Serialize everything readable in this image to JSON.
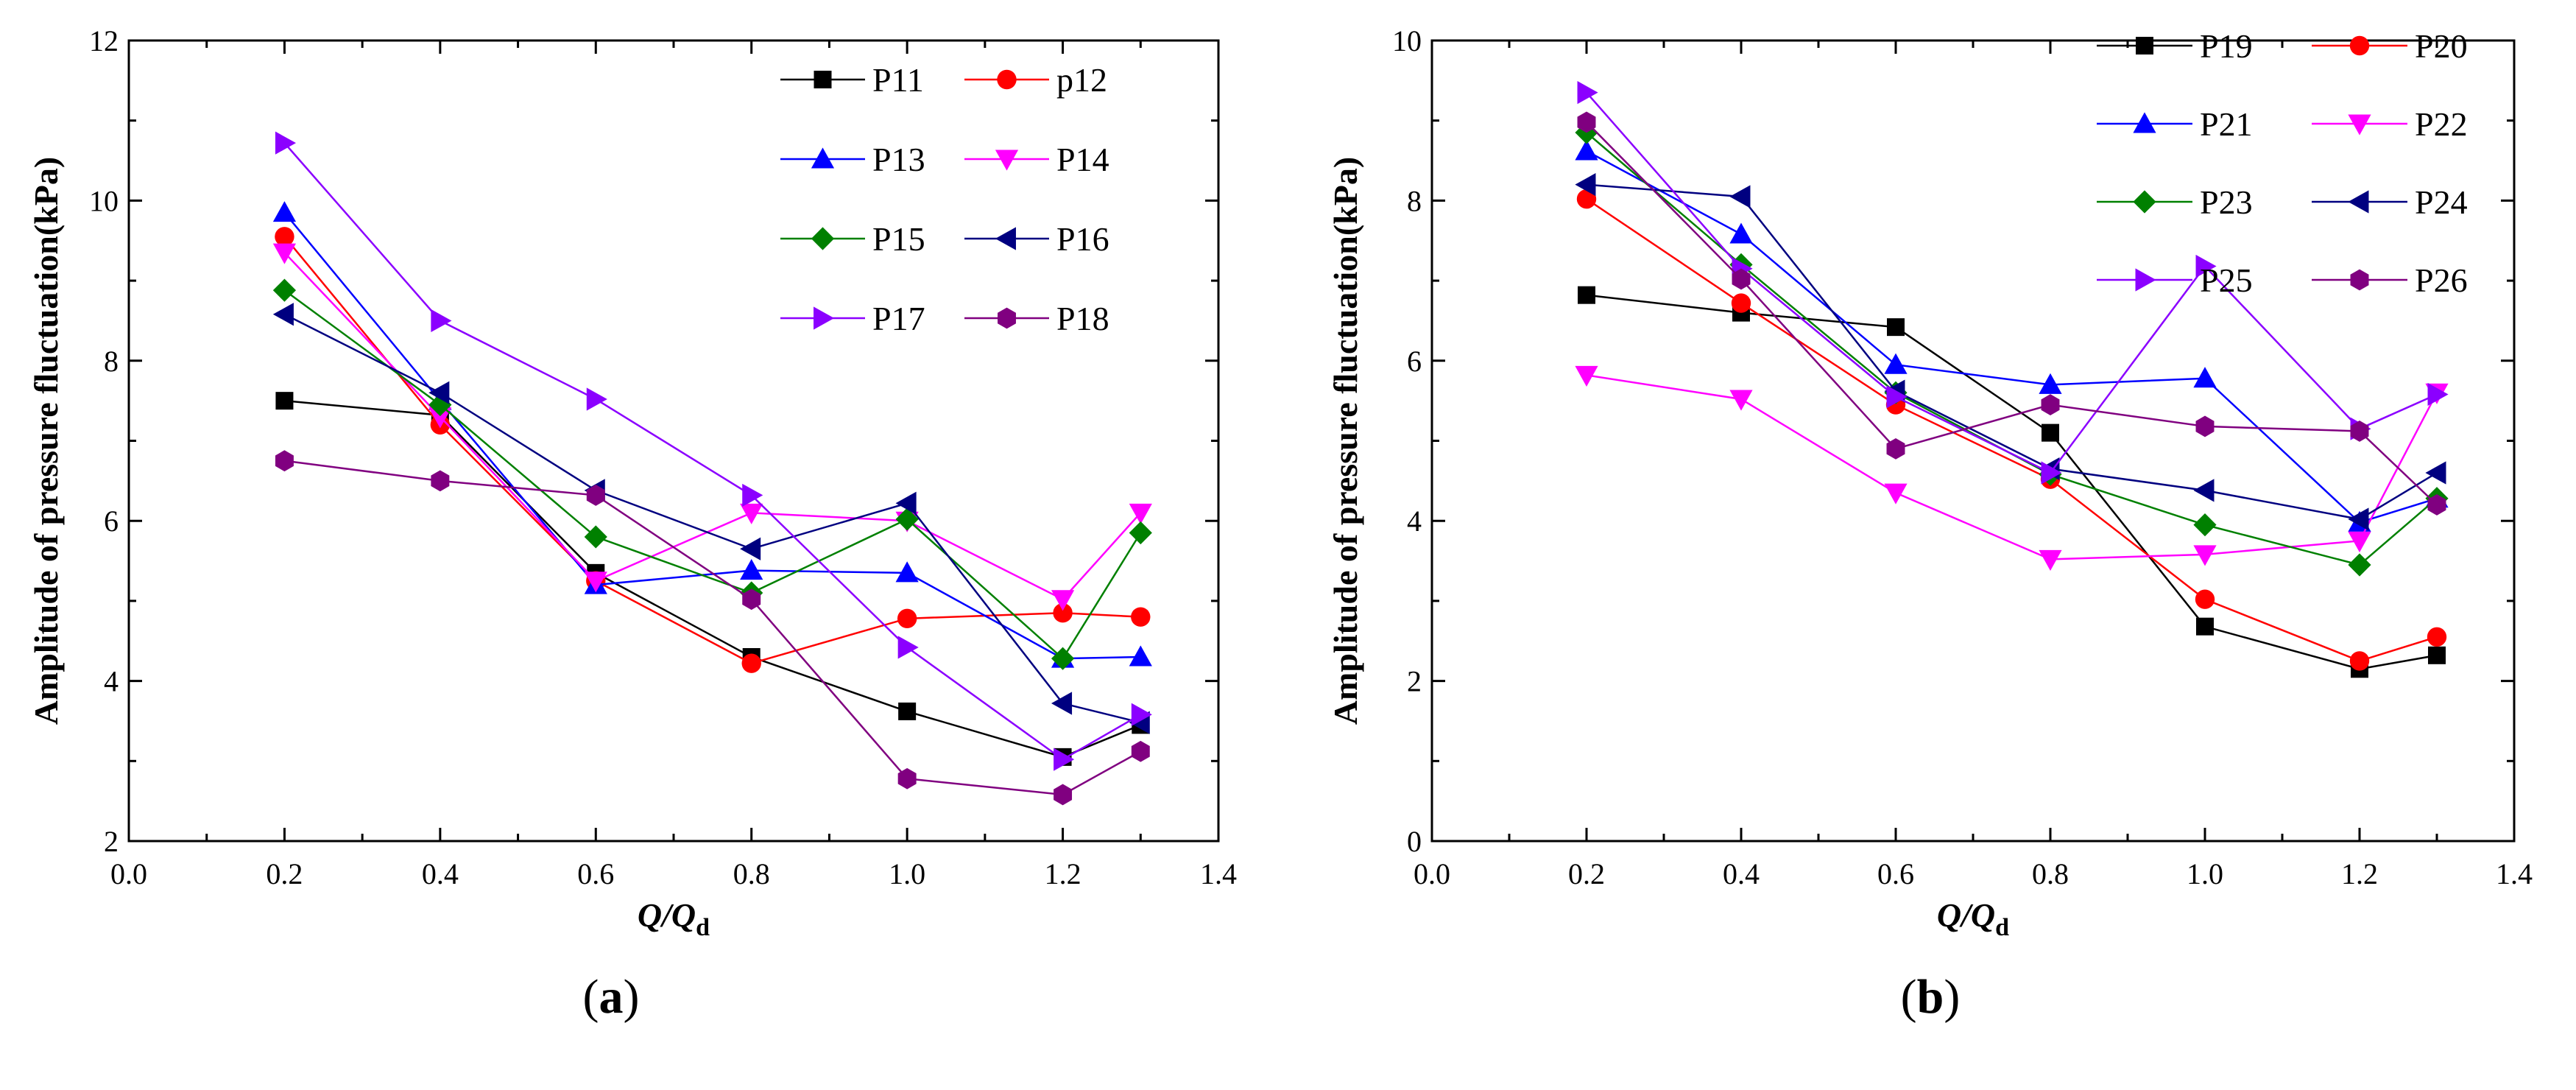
{
  "chart_data": [
    {
      "type": "line",
      "panel_label_prefix": "(",
      "panel_label": "a",
      "panel_label_suffix": ")",
      "ylabel": "Amplitude of pressure fluctuation(kPa)",
      "xlabel_main": "Q",
      "xlabel_slash": "/",
      "xlabel_sub_main": "Q",
      "xlabel_sub": "d",
      "xlim": [
        0.0,
        1.4
      ],
      "ylim": [
        2,
        12
      ],
      "xticks": [
        "0.0",
        "0.2",
        "0.4",
        "0.6",
        "0.8",
        "1.0",
        "1.2",
        "1.4"
      ],
      "yticks": [
        "2",
        "4",
        "6",
        "8",
        "10",
        "12"
      ],
      "legend_position": "top-right",
      "x": [
        0.2,
        0.4,
        0.6,
        0.8,
        1.0,
        1.2,
        1.3
      ],
      "series": [
        {
          "name": "P11",
          "color": "#000000",
          "marker": "square",
          "values": [
            7.5,
            7.32,
            5.35,
            4.3,
            3.62,
            3.05,
            3.45
          ]
        },
        {
          "name": "p12",
          "color": "#ff0000",
          "marker": "circle",
          "values": [
            9.55,
            7.2,
            5.25,
            4.22,
            4.78,
            4.85,
            4.8
          ]
        },
        {
          "name": "P13",
          "color": "#0000ff",
          "marker": "triangle-up",
          "values": [
            9.85,
            7.5,
            5.2,
            5.38,
            5.35,
            4.28,
            4.3
          ]
        },
        {
          "name": "P14",
          "color": "#ff00ff",
          "marker": "triangle-down",
          "values": [
            9.35,
            7.3,
            5.25,
            6.1,
            6.0,
            5.02,
            6.1
          ]
        },
        {
          "name": "P15",
          "color": "#008000",
          "marker": "diamond",
          "values": [
            8.88,
            7.45,
            5.8,
            5.1,
            6.02,
            4.28,
            5.85
          ]
        },
        {
          "name": "P16",
          "color": "#000080",
          "marker": "triangle-left",
          "values": [
            8.58,
            7.6,
            6.38,
            5.65,
            6.22,
            3.72,
            3.48
          ]
        },
        {
          "name": "P17",
          "color": "#8b00ff",
          "marker": "triangle-right",
          "values": [
            10.72,
            8.5,
            7.52,
            6.32,
            4.42,
            3.02,
            3.58
          ]
        },
        {
          "name": "P18",
          "color": "#800080",
          "marker": "hexagon",
          "values": [
            6.75,
            6.5,
            6.32,
            5.02,
            2.78,
            2.58,
            3.12
          ]
        }
      ]
    },
    {
      "type": "line",
      "panel_label_prefix": "(",
      "panel_label": "b",
      "panel_label_suffix": ")",
      "ylabel": "Amplitude of pressure fluctuation(kPa)",
      "xlabel_main": "Q",
      "xlabel_slash": "/",
      "xlabel_sub_main": "Q",
      "xlabel_sub": "d",
      "xlim": [
        0.0,
        1.4
      ],
      "ylim": [
        0,
        10
      ],
      "xticks": [
        "0.0",
        "0.2",
        "0.4",
        "0.6",
        "0.8",
        "1.0",
        "1.2",
        "1.4"
      ],
      "yticks": [
        "0",
        "2",
        "4",
        "6",
        "8",
        "10"
      ],
      "legend_position": "top-right",
      "x": [
        0.2,
        0.4,
        0.6,
        0.8,
        1.0,
        1.2,
        1.3
      ],
      "series": [
        {
          "name": "P19",
          "color": "#000000",
          "marker": "square",
          "values": [
            6.82,
            6.6,
            6.42,
            5.1,
            2.68,
            2.15,
            2.32
          ]
        },
        {
          "name": "P20",
          "color": "#ff0000",
          "marker": "circle",
          "values": [
            8.02,
            6.72,
            5.45,
            4.52,
            3.02,
            2.25,
            2.55
          ]
        },
        {
          "name": "P21",
          "color": "#0000ff",
          "marker": "triangle-up",
          "values": [
            8.62,
            7.58,
            5.95,
            5.7,
            5.78,
            3.98,
            4.28
          ]
        },
        {
          "name": "P22",
          "color": "#ff00ff",
          "marker": "triangle-down",
          "values": [
            5.82,
            5.52,
            4.35,
            3.52,
            3.58,
            3.75,
            5.6
          ]
        },
        {
          "name": "P23",
          "color": "#008000",
          "marker": "diamond",
          "values": [
            8.85,
            7.2,
            5.6,
            4.58,
            3.95,
            3.45,
            4.28
          ]
        },
        {
          "name": "P24",
          "color": "#000080",
          "marker": "triangle-left",
          "values": [
            8.2,
            8.05,
            5.62,
            4.65,
            4.38,
            4.02,
            4.6
          ]
        },
        {
          "name": "P25",
          "color": "#8b00ff",
          "marker": "triangle-right",
          "values": [
            9.35,
            7.15,
            5.55,
            4.6,
            7.18,
            5.15,
            5.58
          ]
        },
        {
          "name": "P26",
          "color": "#800080",
          "marker": "hexagon",
          "values": [
            8.98,
            7.02,
            4.9,
            5.45,
            5.18,
            5.12,
            4.2
          ]
        }
      ]
    }
  ]
}
